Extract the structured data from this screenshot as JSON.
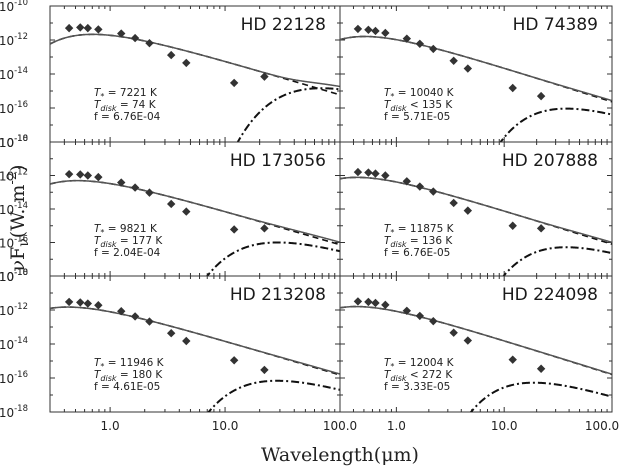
{
  "chart_data": {
    "type": "line",
    "xlabel": "Wavelength",
    "xlabel_unit": "(μm)",
    "ylabel": "νF",
    "ylabel_unit": "(W. m",
    "x_scale": "log",
    "y_scale": "log",
    "xlim": [
      0.3,
      100
    ],
    "ylim": [
      1e-18,
      1e-10
    ],
    "x_ticks": [
      "1.0",
      "10.0",
      "100.0"
    ],
    "y_ticks": [
      "10",
      "10",
      "10",
      "10",
      "10"
    ],
    "y_tick_exponents": [
      "-10",
      "-12",
      "-14",
      "-16",
      "-18"
    ],
    "y_exp_var": "-2",
    "layout": "3 rows x 2 columns",
    "grid": false,
    "legend": "none",
    "series_styles": {
      "total_model": "solid gray",
      "stellar_photosphere": "dashed black",
      "disk_blackbody": "dash-dot black",
      "photometry": "filled black diamonds"
    },
    "panels": [
      {
        "name": "HD 22128",
        "t_star_label": "T",
        "t_star_sub": "*",
        "t_star_rel": " = ",
        "t_star": "7221 K",
        "t_disk_label": "T",
        "t_disk_sub": "disk",
        "t_disk_rel": " = ",
        "t_disk": "74 K",
        "f_text": "f = 6.76E-04",
        "t_star_value": 7221,
        "t_disk_value": 74,
        "f_value": 0.000676,
        "phot_x": [
          0.44,
          0.55,
          0.64,
          0.79,
          1.25,
          1.65,
          2.2,
          3.4,
          4.6,
          12,
          22
        ],
        "phot_y": [
          5e-12,
          5.5e-12,
          5e-12,
          4.2e-12,
          2.4e-12,
          1.3e-12,
          6.5e-13,
          1.3e-13,
          4.5e-14,
          3e-15,
          7e-15
        ]
      },
      {
        "name": "HD 74389",
        "t_star_label": "T",
        "t_star_sub": "*",
        "t_star_rel": " = ",
        "t_star": "10040 K",
        "t_disk_label": "T",
        "t_disk_sub": "disk",
        "t_disk_rel": " < ",
        "t_disk": "135 K",
        "f_text": "f = 5.71E-05",
        "t_star_value": 10040,
        "t_disk_value": 135,
        "f_value": 5.71e-05,
        "phot_x": [
          0.44,
          0.55,
          0.64,
          0.79,
          1.25,
          1.65,
          2.2,
          3.4,
          4.6,
          12,
          22
        ],
        "phot_y": [
          4.5e-12,
          4e-12,
          3.4e-12,
          2.6e-12,
          1.2e-12,
          6e-13,
          3e-13,
          6e-14,
          2.1e-14,
          1.5e-15,
          5e-16
        ]
      },
      {
        "name": "HD 173056",
        "t_star_label": "T",
        "t_star_sub": "*",
        "t_star_rel": " = ",
        "t_star": "9821 K",
        "t_disk_label": "T",
        "t_disk_sub": "disk",
        "t_disk_rel": " = ",
        "t_disk": "177 K",
        "f_text": "f = 2.04E-04",
        "t_star_value": 9821,
        "t_disk_value": 177,
        "f_value": 0.000204,
        "phot_x": [
          0.44,
          0.55,
          0.64,
          0.79,
          1.25,
          1.65,
          2.2,
          3.4,
          4.6,
          12,
          22
        ],
        "phot_y": [
          1.2e-12,
          1.15e-12,
          1e-12,
          8e-13,
          3.8e-13,
          1.9e-13,
          9.5e-14,
          2e-14,
          7e-15,
          6e-16,
          7e-16
        ]
      },
      {
        "name": "HD 207888",
        "t_star_label": "T",
        "t_star_sub": "*",
        "t_star_rel": " = ",
        "t_star": "11875 K",
        "t_disk_label": "T",
        "t_disk_sub": "disk",
        "t_disk_rel": " = ",
        "t_disk": "136 K",
        "f_text": "f = 6.76E-05",
        "t_star_value": 11875,
        "t_disk_value": 136,
        "f_value": 6.76e-05,
        "phot_x": [
          0.44,
          0.55,
          0.64,
          0.79,
          1.25,
          1.65,
          2.2,
          3.4,
          4.6,
          12,
          22
        ],
        "phot_y": [
          1.6e-12,
          1.5e-12,
          1.3e-12,
          1e-12,
          4.5e-13,
          2.2e-13,
          1.1e-13,
          2.3e-14,
          8e-15,
          1e-15,
          7e-16
        ]
      },
      {
        "name": "HD 213208",
        "t_star_label": "T",
        "t_star_sub": "*",
        "t_star_rel": " = ",
        "t_star": "11946 K",
        "t_disk_label": "T",
        "t_disk_sub": "disk",
        "t_disk_rel": " = ",
        "t_disk": "180 K",
        "f_text": "f = 4.61E-05",
        "t_star_value": 11946,
        "t_disk_value": 180,
        "f_value": 4.61e-05,
        "phot_x": [
          0.44,
          0.55,
          0.64,
          0.79,
          1.25,
          1.65,
          2.2,
          3.4,
          4.6,
          12,
          22
        ],
        "phot_y": [
          3e-12,
          2.8e-12,
          2.4e-12,
          1.9e-12,
          8.5e-13,
          4.2e-13,
          2.1e-13,
          4.3e-14,
          1.5e-14,
          1.1e-15,
          3e-16
        ]
      },
      {
        "name": "HD 224098",
        "t_star_label": "T",
        "t_star_sub": "*",
        "t_star_rel": " = ",
        "t_star": "12004 K",
        "t_disk_label": "T",
        "t_disk_sub": "disk",
        "t_disk_rel": " < ",
        "t_disk": "272 K",
        "f_text": "f = 3.33E-05",
        "t_star_value": 12004,
        "t_disk_value": 272,
        "f_value": 3.33e-05,
        "phot_x": [
          0.44,
          0.55,
          0.64,
          0.79,
          1.25,
          1.65,
          2.2,
          3.4,
          4.6,
          12,
          22
        ],
        "phot_y": [
          3.2e-12,
          3e-12,
          2.6e-12,
          2e-12,
          9e-13,
          4.5e-13,
          2.2e-13,
          4.6e-14,
          1.6e-14,
          1.2e-15,
          3.5e-16
        ]
      }
    ]
  }
}
